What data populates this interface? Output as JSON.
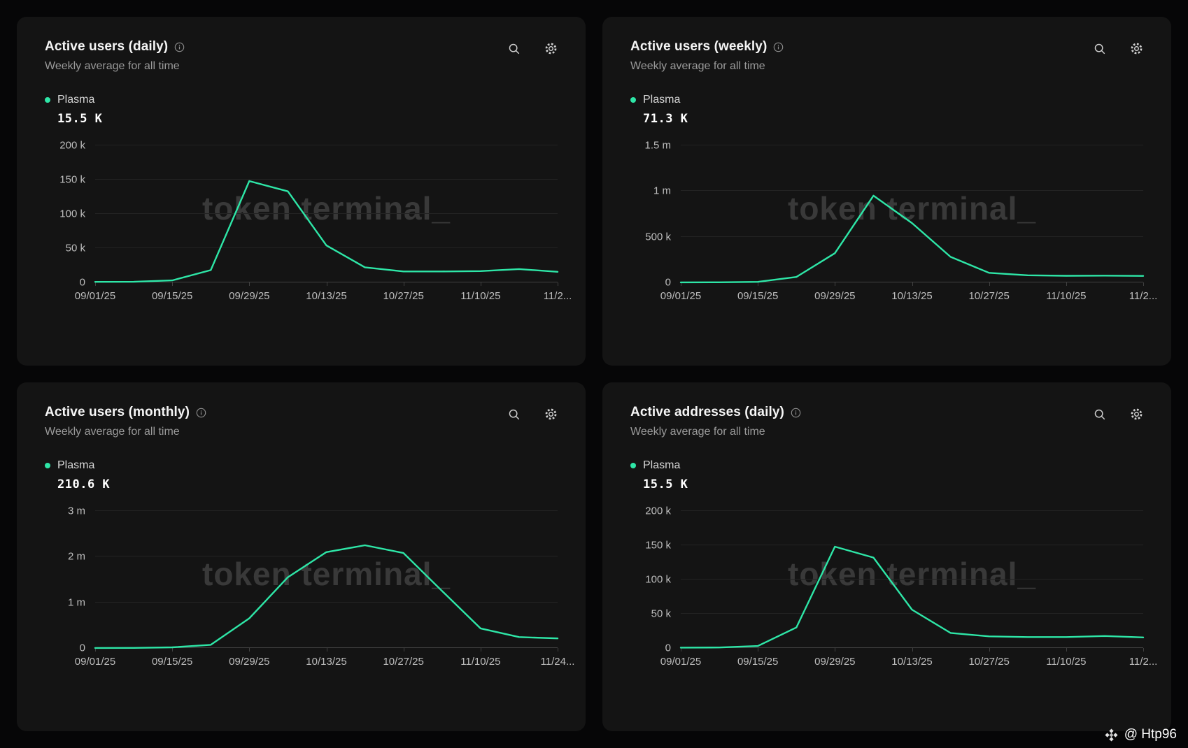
{
  "theme": {
    "page_bg": "#060607",
    "card_bg": "#141414",
    "accent": "#2ee6a7",
    "grid_color": "#232323",
    "axis_color": "#414141",
    "watermark_text": "token terminal_"
  },
  "attribution": {
    "label": "@ Htp96"
  },
  "icons": {
    "search": "magnifier",
    "settings": "gear",
    "info": "info-circle",
    "logo": "binance-diamond"
  },
  "cards": [
    {
      "title": "Active users (daily)",
      "subtitle": "Weekly average for all time",
      "series_name": "Plasma",
      "series_value": "15.5 K"
    },
    {
      "title": "Active users (weekly)",
      "subtitle": "Weekly average for all time",
      "series_name": "Plasma",
      "series_value": "71.3 K"
    },
    {
      "title": "Active users (monthly)",
      "subtitle": "Weekly average for all time",
      "series_name": "Plasma",
      "series_value": "210.6 K"
    },
    {
      "title": "Active addresses (daily)",
      "subtitle": "Weekly average for all time",
      "series_name": "Plasma",
      "series_value": "15.5 K"
    }
  ],
  "chart_data": [
    {
      "type": "line",
      "title": "Active users (daily)",
      "x": [
        "09/01/25",
        "09/08/25",
        "09/15/25",
        "09/22/25",
        "09/29/25",
        "10/06/25",
        "10/13/25",
        "10/20/25",
        "10/27/25",
        "11/03/25",
        "11/10/25",
        "11/17/25",
        "11/24/25"
      ],
      "series": [
        {
          "name": "Plasma",
          "color": "#2ee6a7",
          "values": [
            800,
            900,
            3000,
            18000,
            148000,
            133000,
            54000,
            22000,
            16000,
            16000,
            16500,
            19500,
            15500
          ]
        }
      ],
      "x_tick_labels": [
        "09/01/25",
        "09/15/25",
        "09/29/25",
        "10/13/25",
        "10/27/25",
        "11/10/25",
        "11/2..."
      ],
      "y_ticks": [
        {
          "label": "0",
          "value": 0
        },
        {
          "label": "50 k",
          "value": 50000
        },
        {
          "label": "100 k",
          "value": 100000
        },
        {
          "label": "150 k",
          "value": 150000
        },
        {
          "label": "200 k",
          "value": 200000
        }
      ],
      "ymax": 200000,
      "grid": true,
      "legend_position": "top-left"
    },
    {
      "type": "line",
      "title": "Active users (weekly)",
      "x": [
        "09/01/25",
        "09/08/25",
        "09/15/25",
        "09/22/25",
        "09/29/25",
        "10/06/25",
        "10/13/25",
        "10/20/25",
        "10/27/25",
        "11/03/25",
        "11/10/25",
        "11/17/25",
        "11/24/25"
      ],
      "series": [
        {
          "name": "Plasma",
          "color": "#2ee6a7",
          "values": [
            1000,
            1500,
            6000,
            60000,
            320000,
            950000,
            650000,
            280000,
            105000,
            78000,
            73000,
            74000,
            71300
          ]
        }
      ],
      "x_tick_labels": [
        "09/01/25",
        "09/15/25",
        "09/29/25",
        "10/13/25",
        "10/27/25",
        "11/10/25",
        "11/2..."
      ],
      "y_ticks": [
        {
          "label": "0",
          "value": 0
        },
        {
          "label": "500 k",
          "value": 500000
        },
        {
          "label": "1 m",
          "value": 1000000
        },
        {
          "label": "1.5 m",
          "value": 1500000
        }
      ],
      "ymax": 1500000,
      "grid": true,
      "legend_position": "top-left"
    },
    {
      "type": "line",
      "title": "Active users (monthly)",
      "x": [
        "09/01/25",
        "09/08/25",
        "09/15/25",
        "09/22/25",
        "09/29/25",
        "10/06/25",
        "10/13/25",
        "10/20/25",
        "10/27/25",
        "11/03/25",
        "11/10/25",
        "11/17/25",
        "11/24/25"
      ],
      "series": [
        {
          "name": "Plasma",
          "color": "#2ee6a7",
          "values": [
            2000,
            3000,
            15000,
            70000,
            650000,
            1550000,
            2100000,
            2250000,
            2080000,
            1250000,
            430000,
            240000,
            210600
          ]
        }
      ],
      "x_tick_labels": [
        "09/01/25",
        "09/15/25",
        "09/29/25",
        "10/13/25",
        "10/27/25",
        "11/10/25",
        "11/24..."
      ],
      "y_ticks": [
        {
          "label": "0",
          "value": 0
        },
        {
          "label": "1 m",
          "value": 1000000
        },
        {
          "label": "2 m",
          "value": 2000000
        },
        {
          "label": "3 m",
          "value": 3000000
        }
      ],
      "ymax": 3000000,
      "grid": true,
      "legend_position": "top-left"
    },
    {
      "type": "line",
      "title": "Active addresses (daily)",
      "x": [
        "09/01/25",
        "09/08/25",
        "09/15/25",
        "09/22/25",
        "09/29/25",
        "10/06/25",
        "10/13/25",
        "10/20/25",
        "10/27/25",
        "11/03/25",
        "11/10/25",
        "11/17/25",
        "11/24/25"
      ],
      "series": [
        {
          "name": "Plasma",
          "color": "#2ee6a7",
          "values": [
            600,
            800,
            3000,
            30000,
            148000,
            132000,
            56000,
            22000,
            17000,
            16000,
            16000,
            17500,
            15500
          ]
        }
      ],
      "x_tick_labels": [
        "09/01/25",
        "09/15/25",
        "09/29/25",
        "10/13/25",
        "10/27/25",
        "11/10/25",
        "11/2..."
      ],
      "y_ticks": [
        {
          "label": "0",
          "value": 0
        },
        {
          "label": "50 k",
          "value": 50000
        },
        {
          "label": "100 k",
          "value": 100000
        },
        {
          "label": "150 k",
          "value": 150000
        },
        {
          "label": "200 k",
          "value": 200000
        }
      ],
      "ymax": 200000,
      "grid": true,
      "legend_position": "top-left"
    }
  ]
}
